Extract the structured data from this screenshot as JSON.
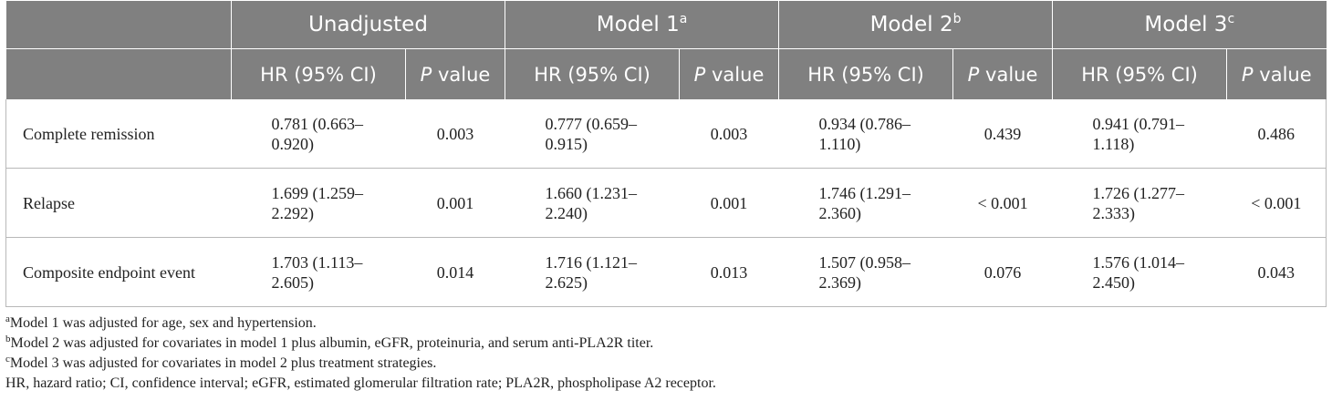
{
  "header": {
    "groups": [
      {
        "label": "Unadjusted",
        "sup": ""
      },
      {
        "label": "Model 1",
        "sup": "a"
      },
      {
        "label": "Model 2",
        "sup": "b"
      },
      {
        "label": "Model 3",
        "sup": "c"
      }
    ],
    "hr_label": "HR (95% CI)",
    "p_prefix": "P",
    "p_suffix": " value"
  },
  "rows": [
    {
      "label": "Complete remission",
      "cells": [
        {
          "hr": "0.781 (0.663–",
          "hr2": "0.920)",
          "p": "0.003"
        },
        {
          "hr": "0.777 (0.659–",
          "hr2": "0.915)",
          "p": "0.003"
        },
        {
          "hr": "0.934 (0.786–",
          "hr2": "1.110)",
          "p": "0.439"
        },
        {
          "hr": "0.941 (0.791–",
          "hr2": "1.118)",
          "p": "0.486"
        }
      ]
    },
    {
      "label": "Relapse",
      "cells": [
        {
          "hr": "1.699 (1.259–",
          "hr2": "2.292)",
          "p": "0.001"
        },
        {
          "hr": "1.660 (1.231–",
          "hr2": "2.240)",
          "p": "0.001"
        },
        {
          "hr": "1.746 (1.291–",
          "hr2": "2.360)",
          "p": "< 0.001"
        },
        {
          "hr": "1.726 (1.277–",
          "hr2": "2.333)",
          "p": "< 0.001"
        }
      ]
    },
    {
      "label": "Composite endpoint event",
      "cells": [
        {
          "hr": "1.703 (1.113–",
          "hr2": "2.605)",
          "p": "0.014"
        },
        {
          "hr": "1.716 (1.121–",
          "hr2": "2.625)",
          "p": "0.013"
        },
        {
          "hr": "1.507 (0.958–",
          "hr2": "2.369)",
          "p": "0.076"
        },
        {
          "hr": "1.576 (1.014–",
          "hr2": "2.450)",
          "p": "0.043"
        }
      ]
    }
  ],
  "footnotes": [
    {
      "sup": "a",
      "text": "Model 1 was adjusted for age, sex and hypertension."
    },
    {
      "sup": "b",
      "text": "Model 2 was adjusted for covariates in model 1 plus albumin, eGFR, proteinuria, and serum anti-PLA2R titer."
    },
    {
      "sup": "c",
      "text": "Model 3 was adjusted for covariates in model 2 plus treatment strategies."
    },
    {
      "sup": "",
      "text": "HR, hazard ratio; CI, confidence interval; eGFR, estimated glomerular filtration rate; PLA2R, phospholipase A2 receptor."
    }
  ]
}
